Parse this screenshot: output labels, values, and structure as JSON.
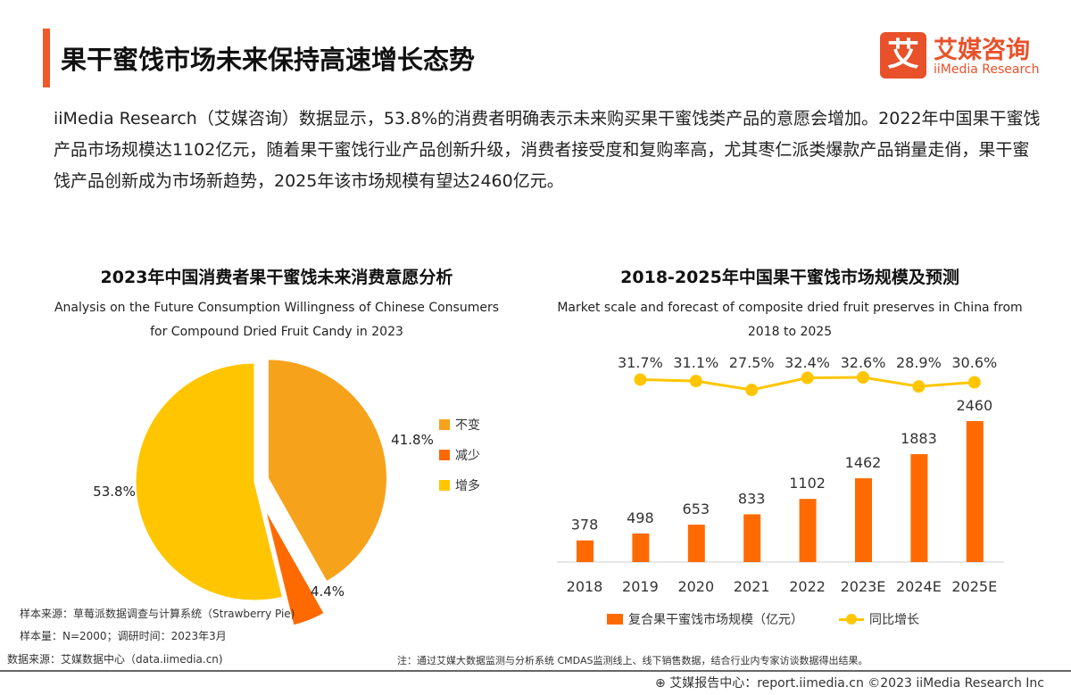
{
  "header": {
    "title": "果干蜜饯市场未来保持高速增长态势",
    "logo_mark": "艾",
    "logo_cn": "艾媒咨询",
    "logo_en": "iiMedia Research"
  },
  "intro": "iiMedia Research（艾媒咨询）数据显示，53.8%的消费者明确表示未来购买果干蜜饯类产品的意愿会增加。2022年中国果干蜜饯产品市场规模达1102亿元，随着果干蜜饯行业产品创新升级，消费者接受度和复购率高，尤其枣仁派类爆款产品销量走俏，果干蜜饯产品创新成为市场新趋势，2025年该市场规模有望达2460亿元。",
  "notes": {
    "sample_source": "样本来源：草莓派数据调查与计算系统（Strawberry Pie)",
    "sample_size": "样本量：N=2000；调研时间：2023年3月",
    "data_source": "数据来源：艾媒数据中心（data.iimedia.cn)",
    "method": "注：通过艾媒大数据监测与分析系统 CMDAS监测线上、线下销售数据，结合行业内专家访谈数据得出结果。"
  },
  "footer": "艾媒报告中心：report.iimedia.cn   ©2023  iiMedia Research Inc",
  "chart_data": [
    {
      "type": "pie",
      "title": "2023年中国消费者果干蜜饯未来消费意愿分析",
      "subtitle": "Analysis on the Future Consumption Willingness of Chinese Consumers for Compound Dried Fruit Candy in 2023",
      "slices": [
        {
          "name": "不变",
          "value": 41.8,
          "label": "41.8%",
          "color": "#F7A21B"
        },
        {
          "name": "减少",
          "value": 4.4,
          "label": "4.4%",
          "color": "#FF6A00"
        },
        {
          "name": "增多",
          "value": 53.8,
          "label": "53.8%",
          "color": "#FFC600"
        }
      ],
      "legend": "right"
    },
    {
      "type": "bar+line",
      "title": "2018-2025年中国果干蜜饯市场规模及预测",
      "subtitle": "Market scale and forecast of composite dried fruit preserves in China from 2018 to 2025",
      "categories": [
        "2018",
        "2019",
        "2020",
        "2021",
        "2022",
        "2023E",
        "2024E",
        "2025E"
      ],
      "series": [
        {
          "name": "复合果干蜜饯市场规模（亿元）",
          "type": "bar",
          "color": "#FF6A00",
          "values": [
            378,
            498,
            653,
            833,
            1102,
            1462,
            1883,
            2460
          ]
        },
        {
          "name": "同比增长",
          "type": "line",
          "color": "#FFC600",
          "values": [
            null,
            31.7,
            31.1,
            27.5,
            32.4,
            32.6,
            28.9,
            30.6
          ],
          "labels": [
            "",
            "31.7%",
            "31.1%",
            "27.5%",
            "32.4%",
            "32.6%",
            "28.9%",
            "30.6%"
          ]
        }
      ],
      "legend": "bottom"
    }
  ]
}
